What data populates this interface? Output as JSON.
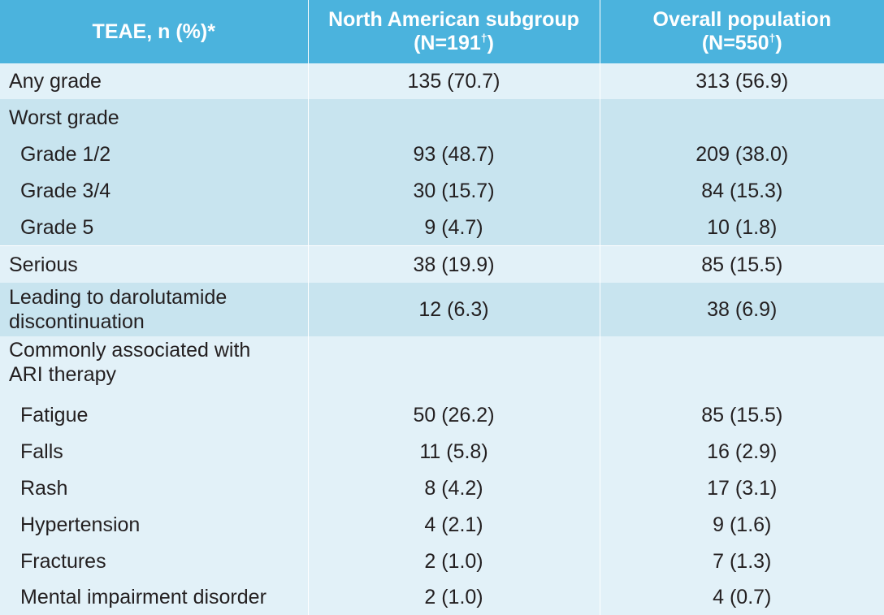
{
  "header": {
    "col1": "TEAE, n (%)*",
    "col2_line1": "North American subgroup",
    "col2_line2_pre": "(N=191",
    "col2_dagger": "†",
    "col2_line2_post": ")",
    "col3_line1": "Overall population",
    "col3_line2_pre": "(N=550",
    "col3_dagger": "†",
    "col3_line2_post": ")"
  },
  "rows": [
    {
      "label": "Any grade",
      "na": "135 (70.7)",
      "overall": "313 (56.9)"
    },
    {
      "label": "Worst grade",
      "na": "",
      "overall": ""
    },
    {
      "label": "Grade 1/2",
      "na": "93 (48.7)",
      "overall": "209 (38.0)"
    },
    {
      "label": "Grade 3/4",
      "na": "30 (15.7)",
      "overall": "84 (15.3)"
    },
    {
      "label": "Grade 5",
      "na": "9 (4.7)",
      "overall": "10 (1.8)"
    },
    {
      "label": "Serious",
      "na": "38 (19.9)",
      "overall": "85 (15.5)"
    },
    {
      "label_line1": "Leading to darolutamide",
      "label_line2": "discontinuation",
      "na": "12 (6.3)",
      "overall": "38 (6.9)"
    },
    {
      "label_line1": "Commonly associated with",
      "label_line2": "ARI therapy",
      "na": "",
      "overall": ""
    },
    {
      "label": "Fatigue",
      "na": "50 (26.2)",
      "overall": "85 (15.5)"
    },
    {
      "label": "Falls",
      "na": "11 (5.8)",
      "overall": "16 (2.9)"
    },
    {
      "label": "Rash",
      "na": "8 (4.2)",
      "overall": "17 (3.1)"
    },
    {
      "label": "Hypertension",
      "na": "4 (2.1)",
      "overall": "9 (1.6)"
    },
    {
      "label": "Fractures",
      "na": "2 (1.0)",
      "overall": "7 (1.3)"
    },
    {
      "label": "Mental impairment disorder",
      "na": "2 (1.0)",
      "overall": "4 (0.7)"
    }
  ],
  "colors": {
    "header_bg": "#4bb3dd",
    "row_light": "#e2f1f8",
    "row_dark": "#c8e4ef"
  }
}
